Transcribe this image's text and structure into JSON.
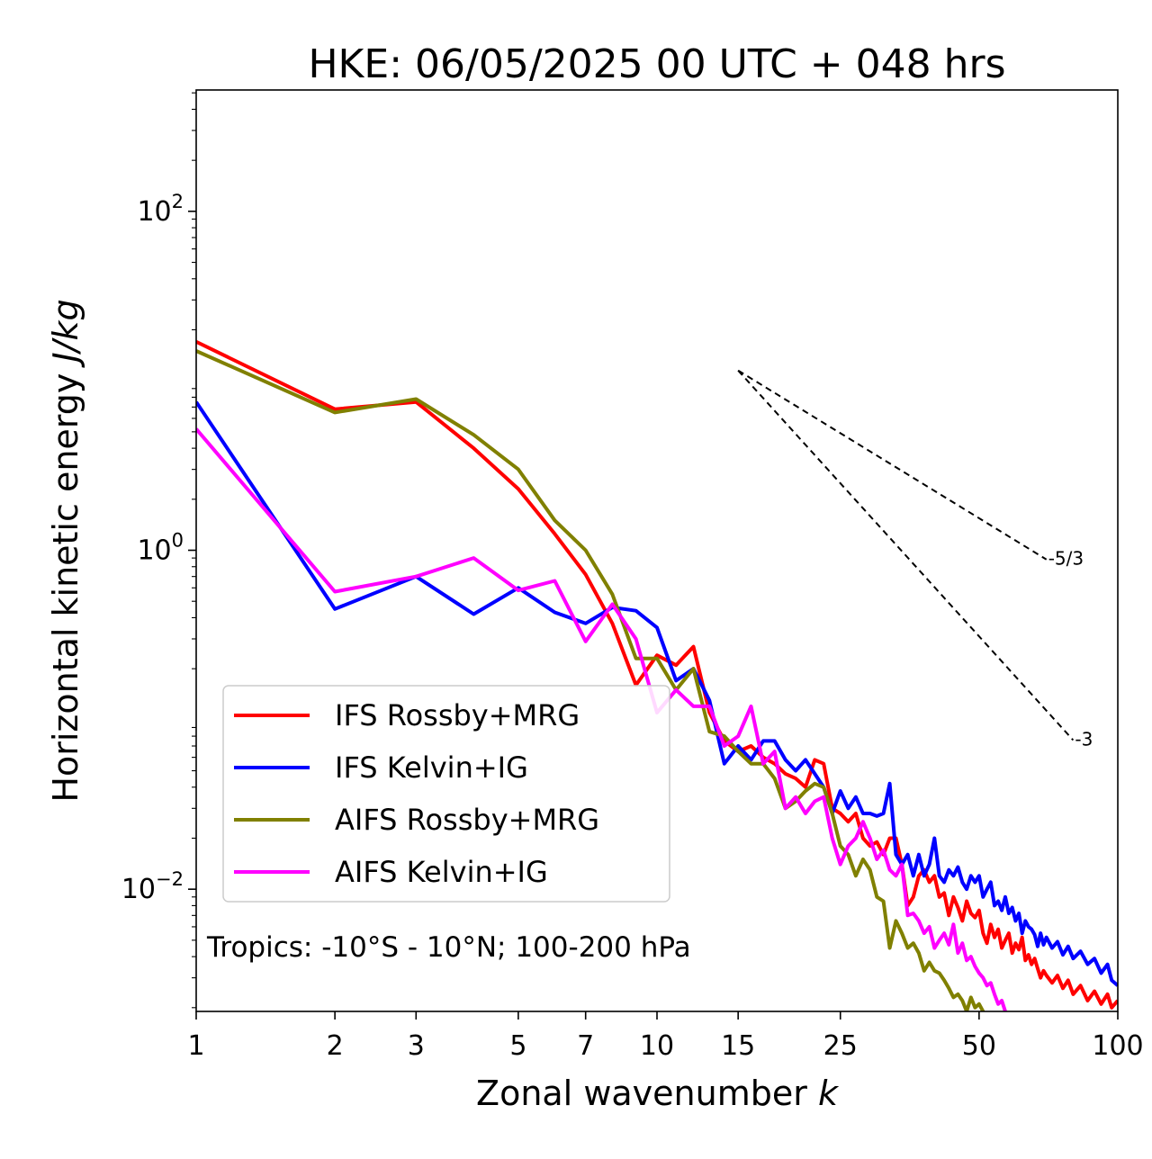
{
  "chart_data": {
    "type": "line",
    "title": "HKE: 06/05/2025 00 UTC + 048 hrs",
    "xlabel": "Zonal wavenumber ",
    "xlabel_var": "k",
    "ylabel": "Horizontal kinetic energy ",
    "ylabel_unit": "J/kg",
    "xscale": "log",
    "yscale": "log",
    "xlim": [
      1,
      100
    ],
    "ylim": [
      0.0019,
      520
    ],
    "x_ticks": [
      {
        "value": 1,
        "label": "1"
      },
      {
        "value": 2,
        "label": "2"
      },
      {
        "value": 3,
        "label": "3"
      },
      {
        "value": 5,
        "label": "5"
      },
      {
        "value": 7,
        "label": "7"
      },
      {
        "value": 10,
        "label": "10"
      },
      {
        "value": 15,
        "label": "15"
      },
      {
        "value": 25,
        "label": "25"
      },
      {
        "value": 50,
        "label": "50"
      },
      {
        "value": 100,
        "label": "100"
      }
    ],
    "y_ticks": [
      {
        "value": 100,
        "base": "10",
        "exp": "2"
      },
      {
        "value": 1,
        "base": "10",
        "exp": "0"
      },
      {
        "value": 0.01,
        "base": "10",
        "exp": "−2"
      }
    ],
    "legend_position": "lower-left",
    "annotation": "Tropics: -10°S - 10°N; 100-200 hPa",
    "reference_lines": [
      {
        "label": "-5/3",
        "slope": -1.6667,
        "x0": 15,
        "y0": 11.5,
        "x1": 70
      },
      {
        "label": "-3",
        "slope": -3,
        "x0": 15,
        "y0": 11.5,
        "x1": 80
      }
    ],
    "series": [
      {
        "name": "IFS Rossby+MRG",
        "color": "#ff0000",
        "points": [
          [
            1,
            17
          ],
          [
            2,
            6.8
          ],
          [
            3,
            7.5
          ],
          [
            4,
            4
          ],
          [
            5,
            2.3
          ],
          [
            6,
            1.25
          ],
          [
            7,
            0.72
          ],
          [
            8,
            0.37
          ],
          [
            9,
            0.16
          ],
          [
            10,
            0.24
          ],
          [
            11,
            0.21
          ],
          [
            12,
            0.27
          ],
          [
            13,
            0.11
          ],
          [
            14,
            0.075
          ],
          [
            15,
            0.065
          ],
          [
            16,
            0.07
          ],
          [
            17,
            0.06
          ],
          [
            18,
            0.055
          ],
          [
            19,
            0.048
          ],
          [
            20,
            0.045
          ],
          [
            21,
            0.04
          ],
          [
            22,
            0.058
          ],
          [
            23,
            0.055
          ],
          [
            24,
            0.03
          ],
          [
            25,
            0.028
          ],
          [
            26,
            0.025
          ],
          [
            27,
            0.028
          ],
          [
            28,
            0.02
          ],
          [
            29,
            0.018
          ],
          [
            30,
            0.019
          ],
          [
            31,
            0.016
          ],
          [
            32,
            0.02
          ],
          [
            33,
            0.02
          ],
          [
            34,
            0.014
          ],
          [
            35,
            0.008
          ],
          [
            36,
            0.009
          ],
          [
            37,
            0.012
          ],
          [
            38,
            0.013
          ],
          [
            39,
            0.011
          ],
          [
            40,
            0.012
          ],
          [
            41,
            0.009
          ],
          [
            42,
            0.0095
          ],
          [
            43,
            0.007
          ],
          [
            44,
            0.009
          ],
          [
            45,
            0.0078
          ],
          [
            46,
            0.0065
          ],
          [
            47,
            0.0085
          ],
          [
            48,
            0.0072
          ],
          [
            49,
            0.0068
          ],
          [
            50,
            0.0075
          ],
          [
            51,
            0.0055
          ],
          [
            52,
            0.0048
          ],
          [
            53,
            0.0062
          ],
          [
            54,
            0.0052
          ],
          [
            55,
            0.0058
          ],
          [
            56,
            0.0045
          ],
          [
            57,
            0.005
          ],
          [
            58,
            0.0055
          ],
          [
            59,
            0.0042
          ],
          [
            60,
            0.0048
          ],
          [
            61,
            0.0044
          ],
          [
            62,
            0.0052
          ],
          [
            63,
            0.0038
          ],
          [
            64,
            0.0041
          ],
          [
            65,
            0.0036
          ],
          [
            66,
            0.0039
          ],
          [
            67,
            0.0034
          ],
          [
            68,
            0.003
          ],
          [
            69,
            0.0033
          ],
          [
            70,
            0.0031
          ],
          [
            72,
            0.0028
          ],
          [
            74,
            0.0031
          ],
          [
            76,
            0.0026
          ],
          [
            78,
            0.0029
          ],
          [
            80,
            0.0024
          ],
          [
            83,
            0.0027
          ],
          [
            86,
            0.0022
          ],
          [
            89,
            0.0025
          ],
          [
            92,
            0.0021
          ],
          [
            95,
            0.0024
          ],
          [
            97,
            0.002
          ],
          [
            100,
            0.0022
          ]
        ]
      },
      {
        "name": "IFS Kelvin+IG",
        "color": "#0000ff",
        "points": [
          [
            1,
            7.5
          ],
          [
            2,
            0.45
          ],
          [
            3,
            0.7
          ],
          [
            4,
            0.42
          ],
          [
            5,
            0.6
          ],
          [
            6,
            0.43
          ],
          [
            7,
            0.37
          ],
          [
            8,
            0.46
          ],
          [
            9,
            0.44
          ],
          [
            10,
            0.35
          ],
          [
            11,
            0.17
          ],
          [
            12,
            0.2
          ],
          [
            13,
            0.13
          ],
          [
            14,
            0.055
          ],
          [
            15,
            0.07
          ],
          [
            16,
            0.058
          ],
          [
            17,
            0.075
          ],
          [
            18,
            0.075
          ],
          [
            19,
            0.058
          ],
          [
            20,
            0.05
          ],
          [
            21,
            0.058
          ],
          [
            22,
            0.048
          ],
          [
            23,
            0.04
          ],
          [
            24,
            0.028
          ],
          [
            25,
            0.038
          ],
          [
            26,
            0.03
          ],
          [
            27,
            0.035
          ],
          [
            28,
            0.028
          ],
          [
            29,
            0.028
          ],
          [
            30,
            0.027
          ],
          [
            31,
            0.028
          ],
          [
            32,
            0.042
          ],
          [
            33,
            0.016
          ],
          [
            34,
            0.014
          ],
          [
            35,
            0.016
          ],
          [
            36,
            0.012
          ],
          [
            37,
            0.016
          ],
          [
            38,
            0.012
          ],
          [
            39,
            0.014
          ],
          [
            40,
            0.02
          ],
          [
            41,
            0.012
          ],
          [
            42,
            0.011
          ],
          [
            43,
            0.013
          ],
          [
            44,
            0.012
          ],
          [
            45,
            0.0135
          ],
          [
            46,
            0.011
          ],
          [
            47,
            0.01
          ],
          [
            48,
            0.012
          ],
          [
            49,
            0.011
          ],
          [
            50,
            0.012
          ],
          [
            51,
            0.009
          ],
          [
            52,
            0.01
          ],
          [
            53,
            0.011
          ],
          [
            54,
            0.008
          ],
          [
            55,
            0.0085
          ],
          [
            56,
            0.0075
          ],
          [
            57,
            0.009
          ],
          [
            58,
            0.0072
          ],
          [
            59,
            0.0078
          ],
          [
            60,
            0.0065
          ],
          [
            61,
            0.0072
          ],
          [
            62,
            0.0055
          ],
          [
            63,
            0.0065
          ],
          [
            64,
            0.006
          ],
          [
            65,
            0.0058
          ],
          [
            66,
            0.0054
          ],
          [
            67,
            0.0046
          ],
          [
            68,
            0.0055
          ],
          [
            69,
            0.0047
          ],
          [
            70,
            0.0052
          ],
          [
            72,
            0.0045
          ],
          [
            74,
            0.0049
          ],
          [
            76,
            0.0041
          ],
          [
            78,
            0.0046
          ],
          [
            80,
            0.0039
          ],
          [
            83,
            0.0043
          ],
          [
            86,
            0.0036
          ],
          [
            89,
            0.0039
          ],
          [
            92,
            0.0032
          ],
          [
            95,
            0.0036
          ],
          [
            97,
            0.0029
          ],
          [
            100,
            0.0027
          ]
        ]
      },
      {
        "name": "AIFS Rossby+MRG",
        "color": "#808000",
        "points": [
          [
            1,
            15
          ],
          [
            2,
            6.5
          ],
          [
            3,
            7.8
          ],
          [
            4,
            4.8
          ],
          [
            5,
            3
          ],
          [
            6,
            1.5
          ],
          [
            7,
            1.0
          ],
          [
            8,
            0.55
          ],
          [
            9,
            0.23
          ],
          [
            10,
            0.23
          ],
          [
            11,
            0.15
          ],
          [
            12,
            0.2
          ],
          [
            13,
            0.085
          ],
          [
            14,
            0.08
          ],
          [
            15,
            0.065
          ],
          [
            16,
            0.055
          ],
          [
            17,
            0.055
          ],
          [
            18,
            0.045
          ],
          [
            19,
            0.03
          ],
          [
            20,
            0.033
          ],
          [
            21,
            0.038
          ],
          [
            22,
            0.042
          ],
          [
            23,
            0.04
          ],
          [
            24,
            0.028
          ],
          [
            25,
            0.018
          ],
          [
            26,
            0.016
          ],
          [
            27,
            0.012
          ],
          [
            28,
            0.015
          ],
          [
            29,
            0.013
          ],
          [
            30,
            0.009
          ],
          [
            31,
            0.0085
          ],
          [
            32,
            0.0045
          ],
          [
            33,
            0.0065
          ],
          [
            34,
            0.0055
          ],
          [
            35,
            0.0045
          ],
          [
            36,
            0.0048
          ],
          [
            37,
            0.0042
          ],
          [
            38,
            0.0033
          ],
          [
            39,
            0.0037
          ],
          [
            40,
            0.0033
          ],
          [
            41,
            0.0032
          ],
          [
            42,
            0.0029
          ],
          [
            43,
            0.0026
          ],
          [
            44,
            0.0023
          ],
          [
            45,
            0.0024
          ],
          [
            46,
            0.0022
          ],
          [
            47,
            0.0019
          ],
          [
            48,
            0.0023
          ],
          [
            49,
            0.002
          ],
          [
            50,
            0.0021
          ],
          [
            51,
            0.0019
          ],
          [
            52,
            0.0016
          ],
          [
            53,
            0.0015
          ],
          [
            54,
            0.0016
          ],
          [
            55,
            0.0013
          ]
        ]
      },
      {
        "name": "AIFS Kelvin+IG",
        "color": "#ff00ff",
        "points": [
          [
            1,
            5.2
          ],
          [
            2,
            0.57
          ],
          [
            3,
            0.7
          ],
          [
            4,
            0.9
          ],
          [
            5,
            0.58
          ],
          [
            6,
            0.66
          ],
          [
            7,
            0.29
          ],
          [
            8,
            0.48
          ],
          [
            9,
            0.3
          ],
          [
            10,
            0.11
          ],
          [
            11,
            0.15
          ],
          [
            12,
            0.12
          ],
          [
            13,
            0.12
          ],
          [
            14,
            0.07
          ],
          [
            15,
            0.08
          ],
          [
            16,
            0.12
          ],
          [
            17,
            0.055
          ],
          [
            18,
            0.065
          ],
          [
            19,
            0.03
          ],
          [
            20,
            0.035
          ],
          [
            21,
            0.028
          ],
          [
            22,
            0.033
          ],
          [
            23,
            0.035
          ],
          [
            24,
            0.02
          ],
          [
            25,
            0.014
          ],
          [
            26,
            0.018
          ],
          [
            27,
            0.02
          ],
          [
            28,
            0.025
          ],
          [
            29,
            0.02
          ],
          [
            30,
            0.015
          ],
          [
            31,
            0.017
          ],
          [
            32,
            0.013
          ],
          [
            33,
            0.012
          ],
          [
            34,
            0.014
          ],
          [
            35,
            0.007
          ],
          [
            36,
            0.0072
          ],
          [
            37,
            0.0065
          ],
          [
            38,
            0.0055
          ],
          [
            39,
            0.006
          ],
          [
            40,
            0.0045
          ],
          [
            41,
            0.005
          ],
          [
            42,
            0.0055
          ],
          [
            43,
            0.0047
          ],
          [
            44,
            0.0062
          ],
          [
            45,
            0.0042
          ],
          [
            46,
            0.0048
          ],
          [
            47,
            0.0038
          ],
          [
            48,
            0.004
          ],
          [
            49,
            0.0035
          ],
          [
            50,
            0.0032
          ],
          [
            51,
            0.003
          ],
          [
            52,
            0.0027
          ],
          [
            53,
            0.0028
          ],
          [
            54,
            0.0024
          ],
          [
            55,
            0.0021
          ],
          [
            56,
            0.0022
          ],
          [
            57,
            0.0019
          ],
          [
            58,
            0.0016
          ],
          [
            59,
            0.0017
          ],
          [
            60,
            0.0014
          ]
        ]
      }
    ]
  }
}
